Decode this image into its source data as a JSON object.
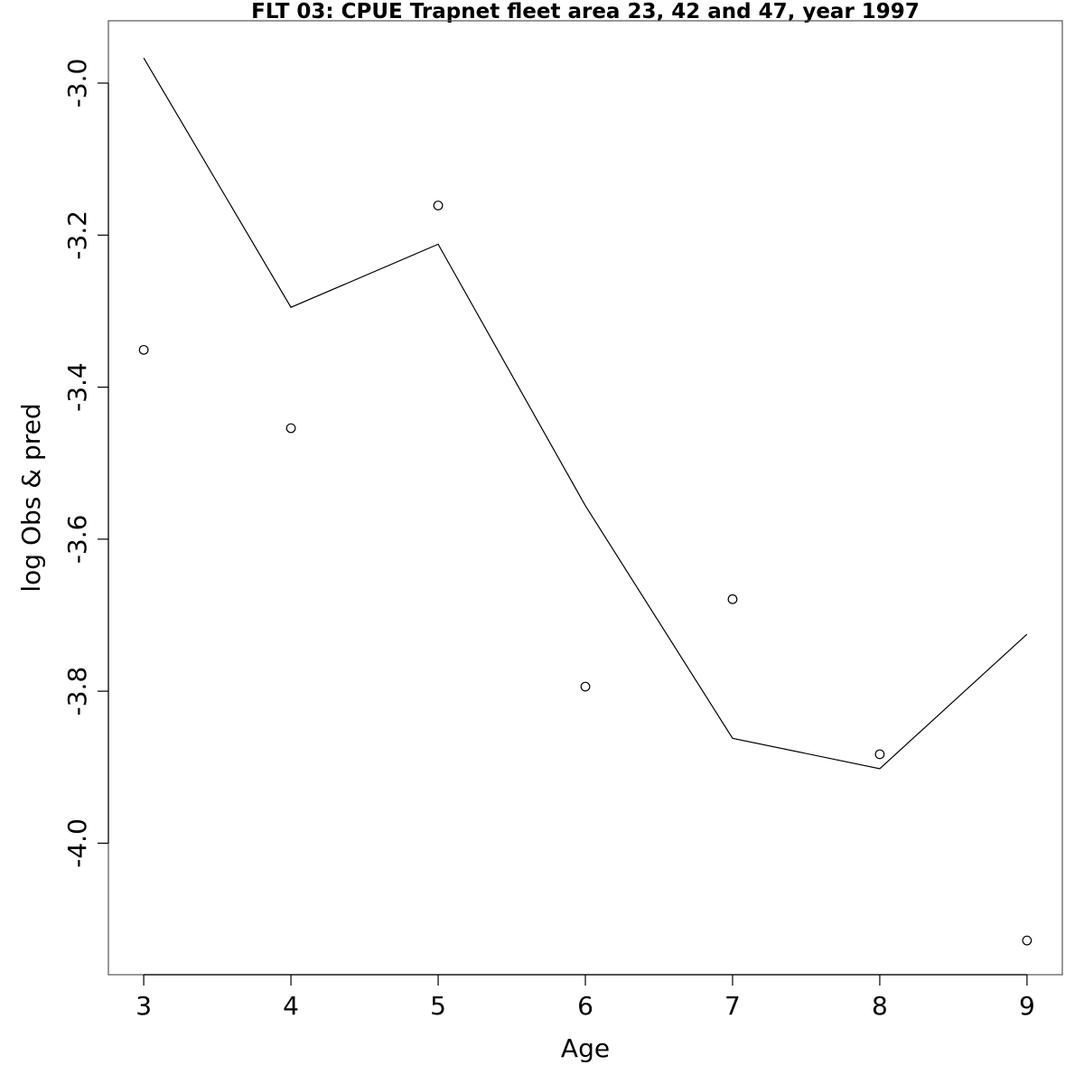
{
  "chart_data": {
    "type": "line",
    "title": "FLT 03: CPUE Trapnet fleet area 23, 42 and 47, year 1997",
    "xlabel": "Age",
    "ylabel": "log Obs & pred",
    "x": [
      3,
      4,
      5,
      6,
      7,
      8,
      9
    ],
    "xlim": [
      2.76,
      9.24
    ],
    "ylim": [
      -4.173,
      -2.918
    ],
    "x_ticks": [
      "3",
      "4",
      "5",
      "6",
      "7",
      "8",
      "9"
    ],
    "y_ticks": [
      "-3.0",
      "-3.2",
      "-3.4",
      "-3.6",
      "-3.8",
      "-4.0"
    ],
    "series": [
      {
        "style": "points",
        "values": [
          -3.351,
          -3.454,
          -3.161,
          -3.794,
          -3.679,
          -3.883,
          -4.128
        ]
      },
      {
        "style": "line",
        "values": [
          -2.967,
          -3.295,
          -3.212,
          -3.556,
          -3.862,
          -3.902,
          -3.725
        ]
      }
    ],
    "grid": false,
    "legend": "none",
    "colors": {
      "line": "#000000",
      "points": "#000000",
      "background": "#ffffff"
    }
  }
}
